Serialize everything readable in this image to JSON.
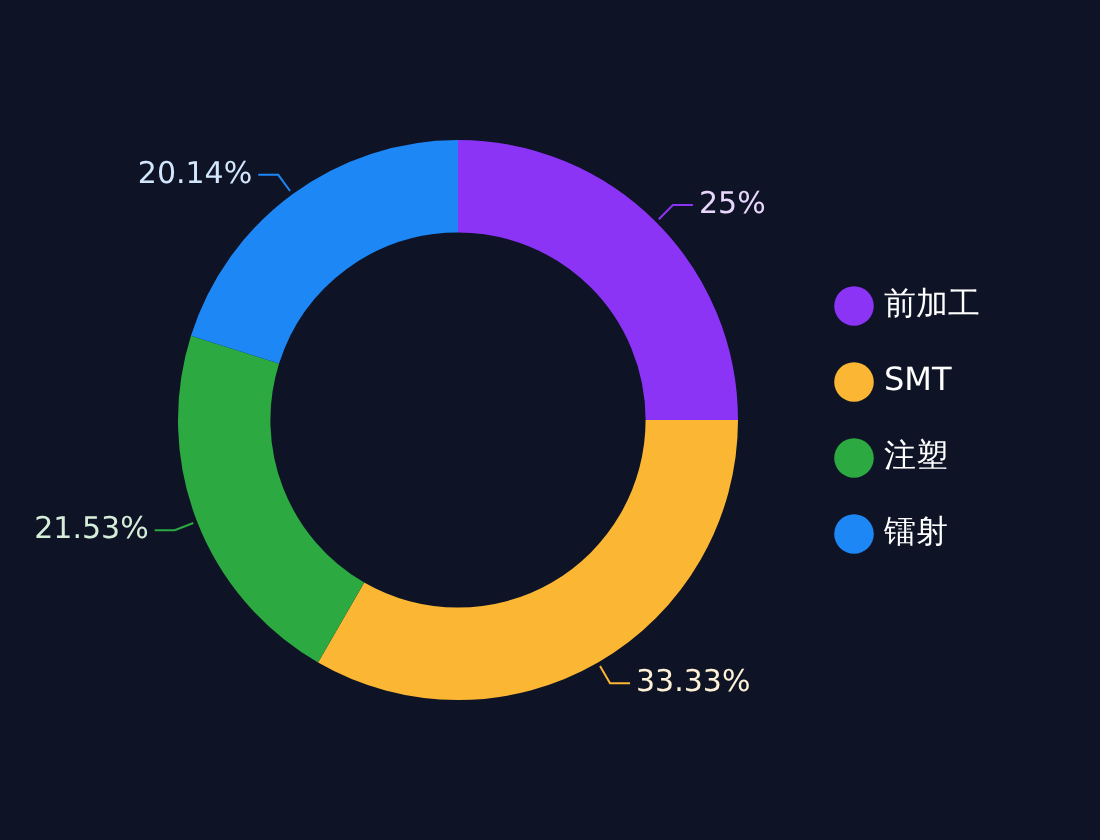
{
  "chart_data": {
    "type": "donut",
    "categories": [
      "前加工",
      "SMT",
      "注塑",
      "镭射"
    ],
    "values": [
      25,
      33.33,
      21.53,
      20.14
    ],
    "colors": [
      "#8b34f6",
      "#fbb733",
      "#2ca940",
      "#1d87f6"
    ],
    "value_labels": [
      "25%",
      "33.33%",
      "21.53%",
      "20.14%"
    ],
    "legend": "right"
  }
}
